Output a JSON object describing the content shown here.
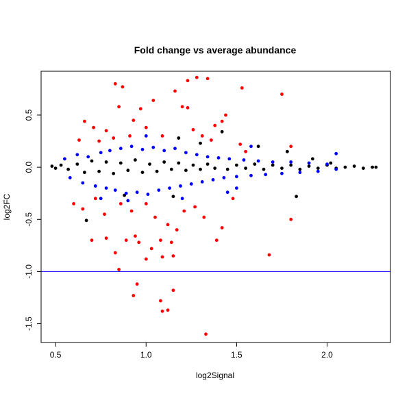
{
  "chart_data": {
    "type": "scatter",
    "title": "Fold change vs average abundance",
    "xlabel": "log2Signal",
    "ylabel": "log2FC",
    "xlim": [
      0.42,
      2.35
    ],
    "ylim": [
      -1.68,
      0.92
    ],
    "xticks": [
      0.5,
      1.0,
      1.5,
      2.0
    ],
    "xtick_labels": [
      "0.5",
      "1.0",
      "1.5",
      "2.0"
    ],
    "yticks": [
      -1.5,
      -1.0,
      -0.5,
      0.0,
      0.5
    ],
    "ytick_labels": [
      "-1.5",
      "-1.0",
      "-0.5",
      "0.0",
      "0.5"
    ],
    "grid": false,
    "reference_line": {
      "y": -1.0,
      "color": "#0000ff"
    },
    "series": [
      {
        "color": "#000000",
        "points": [
          [
            0.48,
            0.01
          ],
          [
            0.5,
            -0.01
          ],
          [
            0.53,
            0.02
          ],
          [
            0.57,
            -0.02
          ],
          [
            0.62,
            0.03
          ],
          [
            0.66,
            -0.05
          ],
          [
            0.7,
            0.06
          ],
          [
            0.74,
            -0.04
          ],
          [
            0.78,
            0.05
          ],
          [
            0.82,
            -0.06
          ],
          [
            0.86,
            0.04
          ],
          [
            0.9,
            -0.03
          ],
          [
            0.94,
            0.07
          ],
          [
            0.98,
            -0.05
          ],
          [
            1.02,
            0.03
          ],
          [
            1.06,
            -0.04
          ],
          [
            1.1,
            0.05
          ],
          [
            1.14,
            -0.02
          ],
          [
            1.18,
            0.04
          ],
          [
            1.22,
            -0.03
          ],
          [
            1.26,
            0.02
          ],
          [
            1.3,
            -0.02
          ],
          [
            1.34,
            0.03
          ],
          [
            1.38,
            -0.01
          ],
          [
            1.42,
            0.34
          ],
          [
            1.45,
            -0.02
          ],
          [
            1.5,
            0.02
          ],
          [
            1.55,
            -0.01
          ],
          [
            1.6,
            0.03
          ],
          [
            1.65,
            -0.02
          ],
          [
            1.7,
            0.02
          ],
          [
            1.75,
            -0.01
          ],
          [
            1.8,
            0.02
          ],
          [
            1.85,
            -0.02
          ],
          [
            1.9,
            0.01
          ],
          [
            1.95,
            -0.01
          ],
          [
            2.0,
            0.02
          ],
          [
            2.05,
            -0.01
          ],
          [
            2.1,
            0.0
          ],
          [
            2.15,
            0.01
          ],
          [
            2.2,
            -0.01
          ],
          [
            2.25,
            0.0
          ],
          [
            2.27,
            0.0
          ],
          [
            0.67,
            -0.51
          ],
          [
            1.83,
            -0.28
          ],
          [
            0.88,
            -0.27
          ],
          [
            1.15,
            -0.28
          ],
          [
            1.62,
            0.2
          ],
          [
            1.78,
            0.15
          ],
          [
            1.92,
            0.08
          ],
          [
            2.02,
            0.04
          ],
          [
            1.3,
            0.23
          ],
          [
            1.18,
            0.28
          ]
        ]
      },
      {
        "color": "#0000ff",
        "points": [
          [
            0.55,
            0.08
          ],
          [
            0.58,
            -0.1
          ],
          [
            0.62,
            0.12
          ],
          [
            0.65,
            -0.15
          ],
          [
            0.68,
            0.1
          ],
          [
            0.72,
            -0.18
          ],
          [
            0.75,
            0.14
          ],
          [
            0.78,
            -0.2
          ],
          [
            0.8,
            0.16
          ],
          [
            0.83,
            -0.22
          ],
          [
            0.86,
            0.18
          ],
          [
            0.89,
            -0.25
          ],
          [
            0.92,
            0.2
          ],
          [
            0.95,
            -0.24
          ],
          [
            0.98,
            0.17
          ],
          [
            1.01,
            -0.26
          ],
          [
            1.04,
            0.19
          ],
          [
            1.07,
            -0.22
          ],
          [
            1.1,
            0.16
          ],
          [
            1.13,
            -0.2
          ],
          [
            1.16,
            0.18
          ],
          [
            1.19,
            -0.18
          ],
          [
            1.22,
            0.14
          ],
          [
            1.25,
            -0.16
          ],
          [
            1.28,
            0.12
          ],
          [
            1.31,
            -0.14
          ],
          [
            1.34,
            0.1
          ],
          [
            1.37,
            -0.12
          ],
          [
            1.4,
            0.09
          ],
          [
            1.43,
            -0.1
          ],
          [
            1.46,
            0.08
          ],
          [
            1.5,
            -0.09
          ],
          [
            1.54,
            0.07
          ],
          [
            1.58,
            -0.08
          ],
          [
            1.62,
            0.06
          ],
          [
            1.66,
            -0.07
          ],
          [
            1.7,
            0.05
          ],
          [
            1.75,
            -0.06
          ],
          [
            1.8,
            0.05
          ],
          [
            1.85,
            -0.05
          ],
          [
            1.9,
            0.04
          ],
          [
            1.95,
            -0.04
          ],
          [
            2.0,
            0.03
          ],
          [
            2.05,
            -0.02
          ],
          [
            2.05,
            0.13
          ],
          [
            0.9,
            -0.32
          ],
          [
            1.0,
            0.3
          ],
          [
            1.2,
            -0.3
          ],
          [
            0.75,
            -0.3
          ],
          [
            1.45,
            -0.24
          ],
          [
            1.5,
            -0.2
          ],
          [
            1.58,
            0.2
          ]
        ]
      },
      {
        "color": "#ff0000",
        "points": [
          [
            0.83,
            0.8
          ],
          [
            0.87,
            0.77
          ],
          [
            1.28,
            0.86
          ],
          [
            1.34,
            0.85
          ],
          [
            1.23,
            0.83
          ],
          [
            1.75,
            0.7
          ],
          [
            1.53,
            0.76
          ],
          [
            1.16,
            0.73
          ],
          [
            1.04,
            0.64
          ],
          [
            0.85,
            0.58
          ],
          [
            0.97,
            0.56
          ],
          [
            1.44,
            0.5
          ],
          [
            1.2,
            0.58
          ],
          [
            1.23,
            0.57
          ],
          [
            1.38,
            0.4
          ],
          [
            1.42,
            0.44
          ],
          [
            0.66,
            0.44
          ],
          [
            0.71,
            0.38
          ],
          [
            0.78,
            0.35
          ],
          [
            0.93,
            0.45
          ],
          [
            1.0,
            0.38
          ],
          [
            1.26,
            0.36
          ],
          [
            0.82,
            0.28
          ],
          [
            0.91,
            0.3
          ],
          [
            1.09,
            0.3
          ],
          [
            1.31,
            0.3
          ],
          [
            1.36,
            0.26
          ],
          [
            0.63,
            0.26
          ],
          [
            0.74,
            0.25
          ],
          [
            1.52,
            0.22
          ],
          [
            1.8,
            0.2
          ],
          [
            0.86,
            -0.35
          ],
          [
            0.77,
            -0.45
          ],
          [
            0.7,
            -0.7
          ],
          [
            0.78,
            -0.68
          ],
          [
            0.83,
            -0.82
          ],
          [
            0.85,
            -0.98
          ],
          [
            0.89,
            -0.7
          ],
          [
            0.94,
            -0.66
          ],
          [
            0.96,
            -0.72
          ],
          [
            1.0,
            -0.88
          ],
          [
            1.03,
            -0.78
          ],
          [
            1.08,
            -0.7
          ],
          [
            1.14,
            -0.72
          ],
          [
            1.15,
            -0.85
          ],
          [
            1.17,
            -0.6
          ],
          [
            1.09,
            -0.86
          ],
          [
            0.93,
            -1.23
          ],
          [
            0.95,
            -1.12
          ],
          [
            1.08,
            -1.28
          ],
          [
            1.09,
            -1.38
          ],
          [
            1.12,
            -1.37
          ],
          [
            1.15,
            -1.18
          ],
          [
            1.33,
            -1.6
          ],
          [
            1.39,
            -0.7
          ],
          [
            1.68,
            -0.84
          ],
          [
            1.8,
            -0.5
          ],
          [
            1.42,
            -0.58
          ],
          [
            1.32,
            -0.48
          ],
          [
            0.6,
            -0.35
          ],
          [
            0.65,
            -0.4
          ],
          [
            0.72,
            -0.3
          ],
          [
            0.92,
            -0.42
          ],
          [
            1.0,
            -0.35
          ],
          [
            1.05,
            -0.48
          ],
          [
            1.12,
            -0.55
          ],
          [
            1.21,
            -0.42
          ],
          [
            1.27,
            -0.38
          ],
          [
            1.48,
            -0.3
          ],
          [
            1.55,
            0.15
          ]
        ]
      }
    ]
  }
}
